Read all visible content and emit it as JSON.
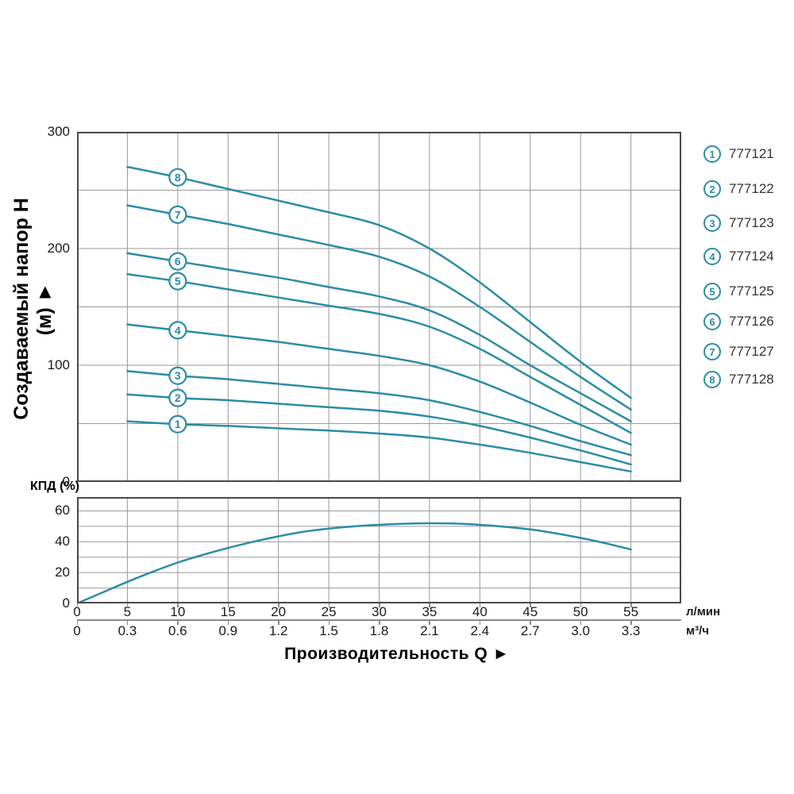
{
  "colors": {
    "curve": "#2b8ca6",
    "grid": "#9a9a9a",
    "frame": "#4a4a4a",
    "text": "#1a1a1a",
    "legend_text": "#333333",
    "background": "#ffffff"
  },
  "x_title": "Производительность Q ►",
  "chart_data": [
    {
      "type": "line",
      "title": "",
      "ylabel": "Создаваемый напор H (м) ►",
      "xlabel": "Производительность Q",
      "ylim": [
        0,
        300
      ],
      "xlim_lmin": [
        0,
        60
      ],
      "y_ticks": [
        0,
        100,
        200,
        300
      ],
      "y_grid_step": 50,
      "x_grid_step_lmin": 5,
      "x_ticks_lmin": [
        "0",
        "5",
        "10",
        "15",
        "20",
        "25",
        "30",
        "35",
        "40",
        "45",
        "50",
        "55"
      ],
      "x_ticks_m3h": [
        "0",
        "0.3",
        "0.6",
        "0.9",
        "1.2",
        "1.5",
        "1.8",
        "2.1",
        "2.4",
        "2.7",
        "3.0",
        "3.3"
      ],
      "x_units": {
        "row1": "л/мин",
        "row2": "м³/ч"
      },
      "marker_q": 10,
      "q": [
        5,
        10,
        15,
        20,
        25,
        30,
        35,
        40,
        45,
        50,
        55
      ],
      "series": [
        {
          "num": "1",
          "name": "777121",
          "values": [
            52,
            49.5,
            48,
            46,
            44,
            41.5,
            38,
            32,
            25,
            17,
            9
          ]
        },
        {
          "num": "2",
          "name": "777122",
          "values": [
            75,
            72,
            70,
            67,
            64,
            61,
            56,
            48,
            38,
            27,
            15
          ]
        },
        {
          "num": "3",
          "name": "777123",
          "values": [
            95,
            91,
            88,
            84,
            80,
            76,
            70,
            60,
            48,
            35,
            23
          ]
        },
        {
          "num": "4",
          "name": "777124",
          "values": [
            135,
            130,
            125,
            120,
            114,
            108,
            100,
            86,
            68,
            49,
            32
          ]
        },
        {
          "num": "5",
          "name": "777125",
          "values": [
            178,
            172,
            165,
            158,
            151,
            144,
            133,
            114,
            90,
            66,
            42
          ]
        },
        {
          "num": "6",
          "name": "777126",
          "values": [
            196,
            189,
            182,
            175,
            167,
            159,
            147,
            126,
            100,
            76,
            52
          ]
        },
        {
          "num": "7",
          "name": "777127",
          "values": [
            237,
            229,
            221,
            212,
            203,
            193,
            176,
            150,
            120,
            90,
            62
          ]
        },
        {
          "num": "8",
          "name": "777128",
          "values": [
            270,
            261,
            251,
            241,
            231,
            220,
            200,
            171,
            137,
            103,
            72
          ]
        }
      ]
    },
    {
      "type": "line",
      "title": "КПД (%)",
      "ylabel": "КПД (%)",
      "ylim": [
        0,
        69
      ],
      "y_ticks": [
        0,
        20,
        40,
        60
      ],
      "y_grid_step": 10,
      "x_grid_step_lmin": 5,
      "q": [
        0,
        2.5,
        5,
        7.5,
        10,
        12.5,
        15,
        17.5,
        20,
        22.5,
        25,
        27.5,
        30,
        32.5,
        35,
        37.5,
        40,
        42.5,
        45,
        47.5,
        50,
        52.5,
        55
      ],
      "eta": [
        0,
        7,
        14,
        20.5,
        26.5,
        31.5,
        36,
        40,
        43.5,
        46.5,
        48.5,
        50,
        51,
        51.7,
        52,
        51.8,
        51,
        49.7,
        48,
        45.5,
        42.5,
        39,
        35
      ]
    }
  ],
  "legend": {
    "items": [
      {
        "num": "1",
        "model": "777121"
      },
      {
        "num": "2",
        "model": "777122"
      },
      {
        "num": "3",
        "model": "777123"
      },
      {
        "num": "4",
        "model": "777124"
      },
      {
        "num": "5",
        "model": "777125"
      },
      {
        "num": "6",
        "model": "777126"
      },
      {
        "num": "7",
        "model": "777127"
      },
      {
        "num": "8",
        "model": "777128"
      }
    ]
  }
}
